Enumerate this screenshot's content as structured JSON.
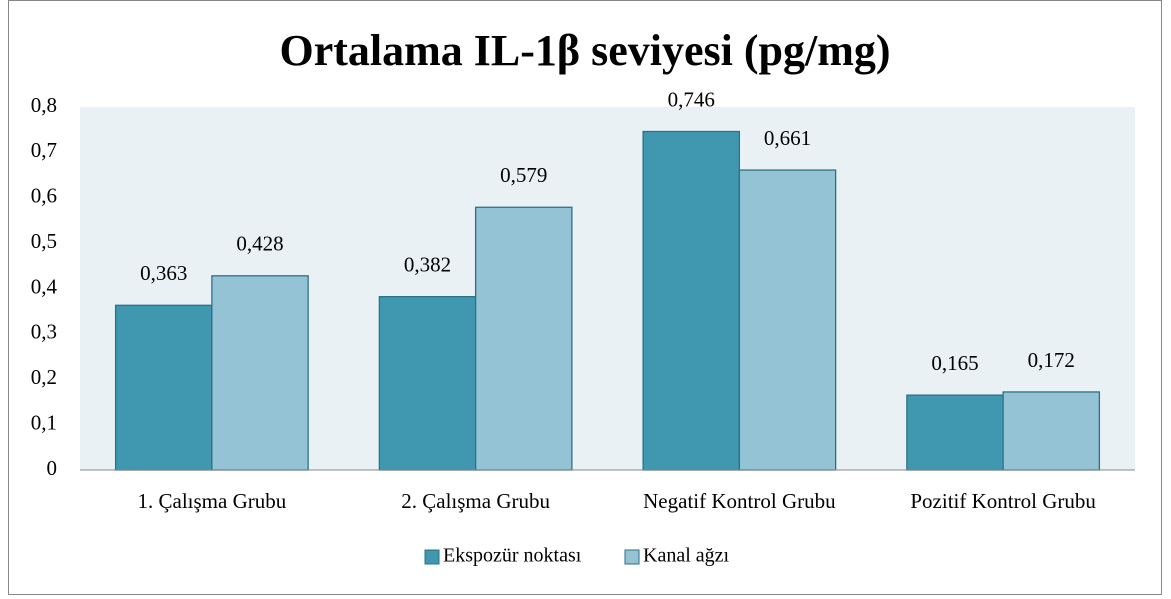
{
  "chart_data": {
    "type": "bar",
    "title": "Ortalama IL-1β seviyesi (pg/mg)",
    "categories": [
      "1. Çalışma Grubu",
      "2. Çalışma Grubu",
      "Negatif Kontrol Grubu",
      "Pozitif Kontrol Grubu"
    ],
    "series": [
      {
        "name": "Ekspozür noktası",
        "color": "#3f98b0",
        "values": [
          0.363,
          0.382,
          0.746,
          0.165
        ],
        "value_labels": [
          "0,363",
          "0,382",
          "0,746",
          "0,165"
        ]
      },
      {
        "name": "Kanal ağzı",
        "color": "#93c3d5",
        "values": [
          0.428,
          0.579,
          0.661,
          0.172
        ],
        "value_labels": [
          "0,428",
          "0,579",
          "0,661",
          "0,172"
        ]
      }
    ],
    "ylim": [
      0,
      0.8
    ],
    "yticks": [
      0,
      {
        "value": 0.1,
        "label": "0,1"
      },
      {
        "value": 0.2,
        "label": "0,2"
      },
      {
        "value": 0.3,
        "label": "0,3"
      },
      {
        "value": 0.4,
        "label": "0,4"
      },
      {
        "value": 0.5,
        "label": "0,5"
      },
      {
        "value": 0.6,
        "label": "0,6"
      },
      {
        "value": 0.7,
        "label": "0,7"
      },
      {
        "value": 0.8,
        "label": "0,8"
      }
    ],
    "grid": false,
    "legend": "bottom"
  }
}
